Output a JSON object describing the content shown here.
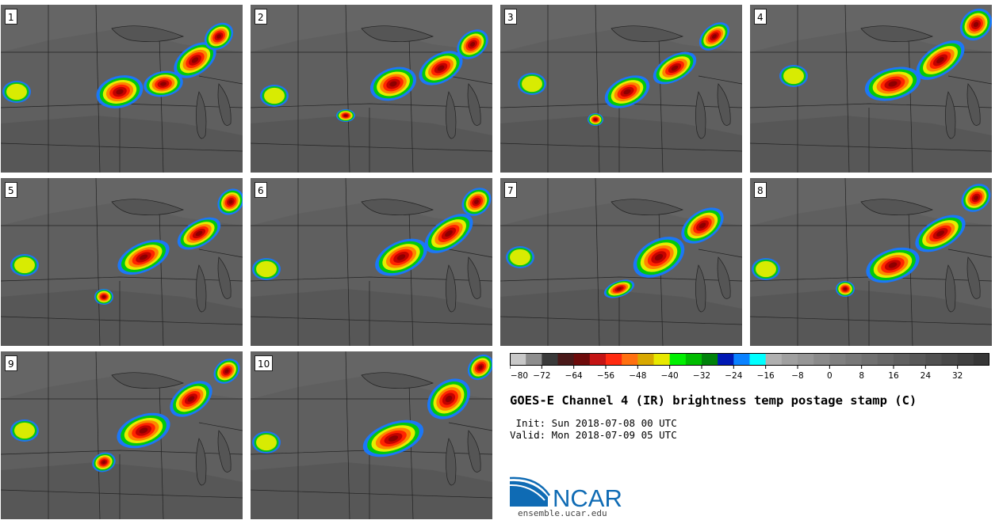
{
  "panels": [
    {
      "label": "1"
    },
    {
      "label": "2"
    },
    {
      "label": "3"
    },
    {
      "label": "4"
    },
    {
      "label": "5"
    },
    {
      "label": "6"
    },
    {
      "label": "7"
    },
    {
      "label": "8"
    },
    {
      "label": "9"
    },
    {
      "label": "10"
    }
  ],
  "colorbar": {
    "colors": [
      "#c8c8c8",
      "#8e8e8e",
      "#3a3a3a",
      "#4a1a1a",
      "#6e0b0b",
      "#c41414",
      "#ff2a10",
      "#ff7010",
      "#d8a800",
      "#e8e800",
      "#00f000",
      "#00bc00",
      "#00820a",
      "#0018b4",
      "#0a82ff",
      "#00ffff",
      "#b0b0b0",
      "#a0a0a0",
      "#969696",
      "#8a8a8a",
      "#808080",
      "#787878",
      "#707070",
      "#686868",
      "#606060",
      "#585858",
      "#505050",
      "#484848",
      "#404040",
      "#363636"
    ],
    "tick_labels": [
      "−80",
      "−72",
      "−64",
      "−56",
      "−48",
      "−40",
      "−32",
      "−24",
      "−16",
      "−8",
      "0",
      "8",
      "16",
      "24",
      "32"
    ]
  },
  "title": "GOES-E Channel 4 (IR) brightness temp postage stamp (C)",
  "init_line": " Init: Sun 2018-07-08 00 UTC",
  "valid_line": "Valid: Mon 2018-07-09 05 UTC",
  "logo": {
    "text": "NCAR",
    "color": "#0f6bb4"
  },
  "site": "ensemble.ucar.edu"
}
